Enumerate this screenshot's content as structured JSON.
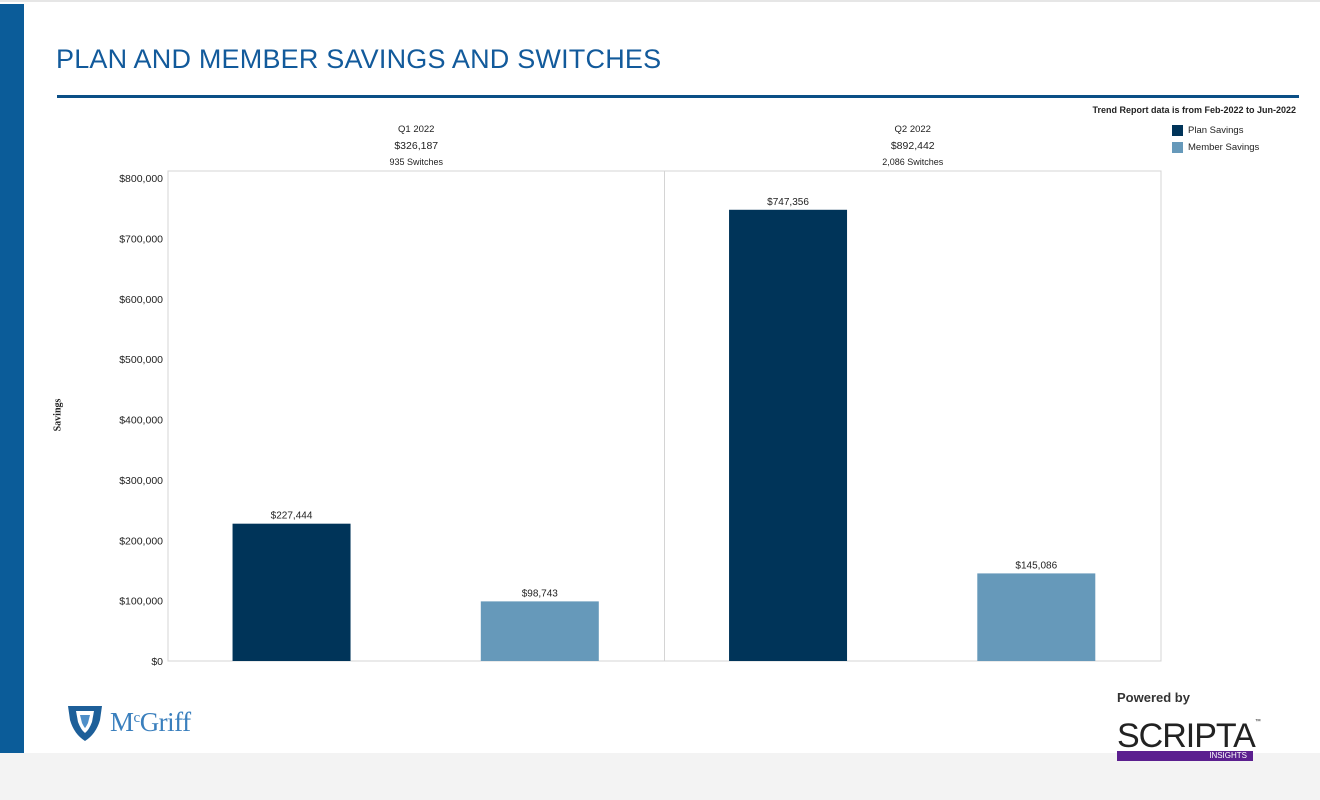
{
  "page": {
    "title": "PLAN AND MEMBER SAVINGS AND SWITCHES",
    "trend_note": "Trend Report data is from Feb-2022 to Jun-2022"
  },
  "legend": [
    {
      "label": "Plan Savings",
      "color": "#003459"
    },
    {
      "label": "Member Savings",
      "color": "#6699ba"
    }
  ],
  "chart_data": {
    "type": "bar",
    "ylabel": "Savings",
    "ylim": [
      0,
      800000
    ],
    "yticks": [
      {
        "value": 0,
        "label": "$0"
      },
      {
        "value": 100000,
        "label": "$100,000"
      },
      {
        "value": 200000,
        "label": "$200,000"
      },
      {
        "value": 300000,
        "label": "$300,000"
      },
      {
        "value": 400000,
        "label": "$400,000"
      },
      {
        "value": 500000,
        "label": "$500,000"
      },
      {
        "value": 600000,
        "label": "$600,000"
      },
      {
        "value": 700000,
        "label": "$700,000"
      },
      {
        "value": 800000,
        "label": "$800,000"
      }
    ],
    "grid": false,
    "legend_position": "top-right",
    "categories": [
      "Q1 2022",
      "Q2 2022"
    ],
    "panel_totals": [
      "$326,187",
      "$892,442"
    ],
    "panel_switches": [
      "935 Switches",
      "2,086 Switches"
    ],
    "series": [
      {
        "name": "Plan Savings",
        "color": "#003459",
        "values": [
          227444,
          747356
        ],
        "labels": [
          "$227,444",
          "$747,356"
        ]
      },
      {
        "name": "Member Savings",
        "color": "#6699ba",
        "values": [
          98743,
          145086
        ],
        "labels": [
          "$98,743",
          "$145,086"
        ]
      }
    ]
  },
  "logos": {
    "left_brand": "McGriff",
    "left_brand_prefix": "M",
    "left_brand_superscript": "c",
    "left_brand_rest": "Griff",
    "powered_by": "Powered by",
    "scripta": "SCRIPTA",
    "scripta_tm": "™",
    "scripta_sub": "INSIGHTS"
  }
}
